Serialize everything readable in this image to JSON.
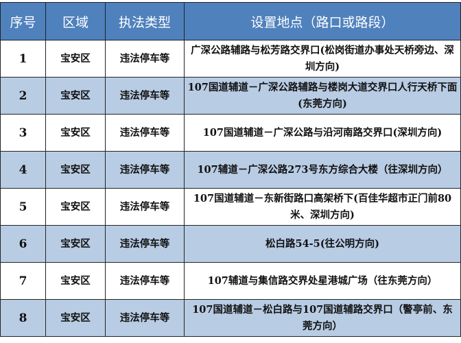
{
  "headers": [
    "序号",
    "区域",
    "执法类型",
    "设置地点（路口或路段）"
  ],
  "rows": [
    {
      "no": "1",
      "area": "宝安区",
      "type": "违法停车等",
      "location": "广深公路辅路与松芳路交界口(松岗街道办事处天桥旁边、深圳方向)"
    },
    {
      "no": "2",
      "area": "宝安区",
      "type": "违法停车等",
      "location": "107国道辅道－广深公路辅路与楼岗大道交界口人行天桥下面(东莞方向)"
    },
    {
      "no": "3",
      "area": "宝安区",
      "type": "违法停车等",
      "location": "107国道辅道－广深公路与沿河南路交界口(深圳方向)"
    },
    {
      "no": "4",
      "area": "宝安区",
      "type": "违法停车等",
      "location": "107辅道－广深公路273号东方综合大楼（往深圳方向）"
    },
    {
      "no": "5",
      "area": "宝安区",
      "type": "违法停车等",
      "location": "107国道辅道－东新街路口高架桥下(百佳华超市正门前80米、深圳方向)"
    },
    {
      "no": "6",
      "area": "宝安区",
      "type": "违法停车等",
      "location": "松白路54-5(往公明方向)"
    },
    {
      "no": "7",
      "area": "宝安区",
      "type": "违法停车等",
      "location": "107辅道与集信路交界处星港城广场（往东莞方向）"
    },
    {
      "no": "8",
      "area": "宝安区",
      "type": "违法停车等",
      "location": "107国道辅道－松白路与107国道辅路交界口（警亭前、东莞方向）"
    }
  ],
  "colors": {
    "header": "#4f81bd",
    "alt_row": "#b8cce4"
  }
}
